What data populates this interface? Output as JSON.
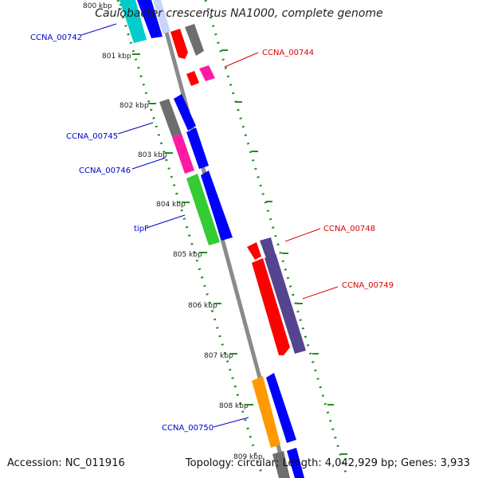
{
  "title": "Caulobacter crescentus NA1000, complete genome",
  "footer": {
    "accession": "Accession: NC_011916",
    "summary": "Topology: circular; Length: 4,042,929 bp; Genes: 3,933"
  },
  "ticks": [
    "800 kbp",
    "801 kbp",
    "802 kbp",
    "803 kbp",
    "804 kbp",
    "805 kbp",
    "806 kbp",
    "807 kbp",
    "808 kbp",
    "809 kbp"
  ],
  "gene_labels": {
    "CCNA_00742": "CCNA_00742",
    "CCNA_00744": "CCNA_00744",
    "CCNA_00745": "CCNA_00745",
    "CCNA_00746": "CCNA_00746",
    "tipF": "tipF",
    "CCNA_00748": "CCNA_00748",
    "CCNA_00749": "CCNA_00749",
    "CCNA_00750": "CCNA_00750"
  },
  "colors": {
    "forward_label": "#0000cc",
    "reverse_label": "#dd0000",
    "backbone": "#8a8a8a",
    "ring": "#1f8f1f",
    "red": "#ff0000",
    "blue": "#0000ff",
    "grey": "#707070",
    "pink": "#ff1aa3",
    "green": "#33cc33",
    "purple": "#55448f",
    "orange": "#ff9900",
    "cyan": "#00cccc"
  }
}
